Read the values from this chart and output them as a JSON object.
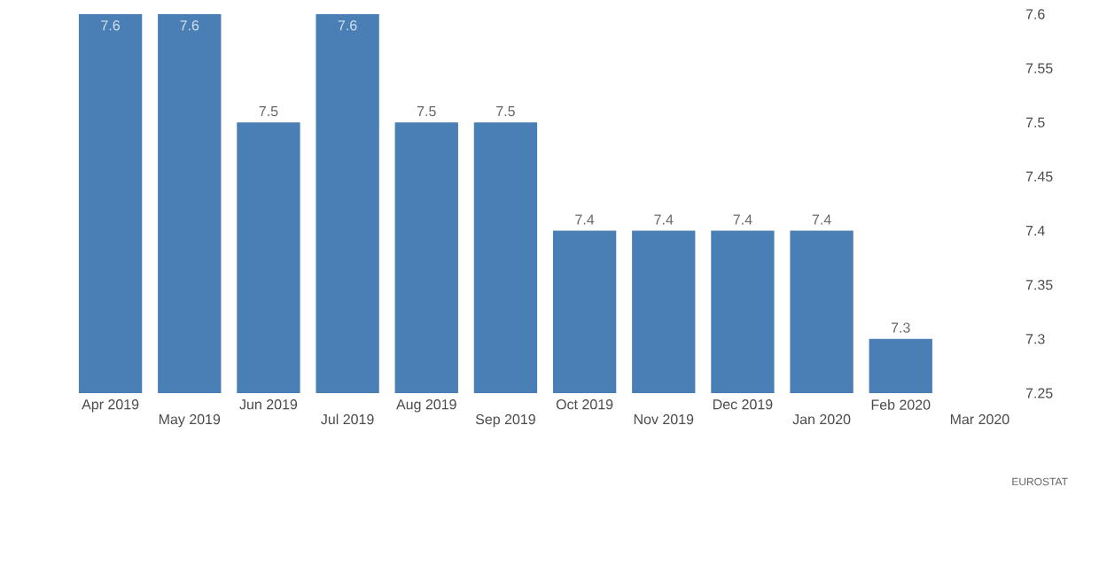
{
  "chart_data": {
    "type": "bar",
    "categories": [
      "Apr 2019",
      "May 2019",
      "Jun 2019",
      "Jul 2019",
      "Aug 2019",
      "Sep 2019",
      "Oct 2019",
      "Nov 2019",
      "Dec 2019",
      "Jan 2020",
      "Feb 2020",
      "Mar 2020"
    ],
    "values": [
      7.6,
      7.6,
      7.5,
      7.6,
      7.5,
      7.5,
      7.4,
      7.4,
      7.4,
      7.4,
      7.3,
      null
    ],
    "color": "#4a7fb5",
    "ylim": [
      7.25,
      7.6
    ],
    "yticks": [
      7.25,
      7.3,
      7.35,
      7.4,
      7.45,
      7.5,
      7.55,
      7.6
    ],
    "data_labels": true,
    "grid": false,
    "annotations": [
      "EUROSTAT"
    ]
  }
}
